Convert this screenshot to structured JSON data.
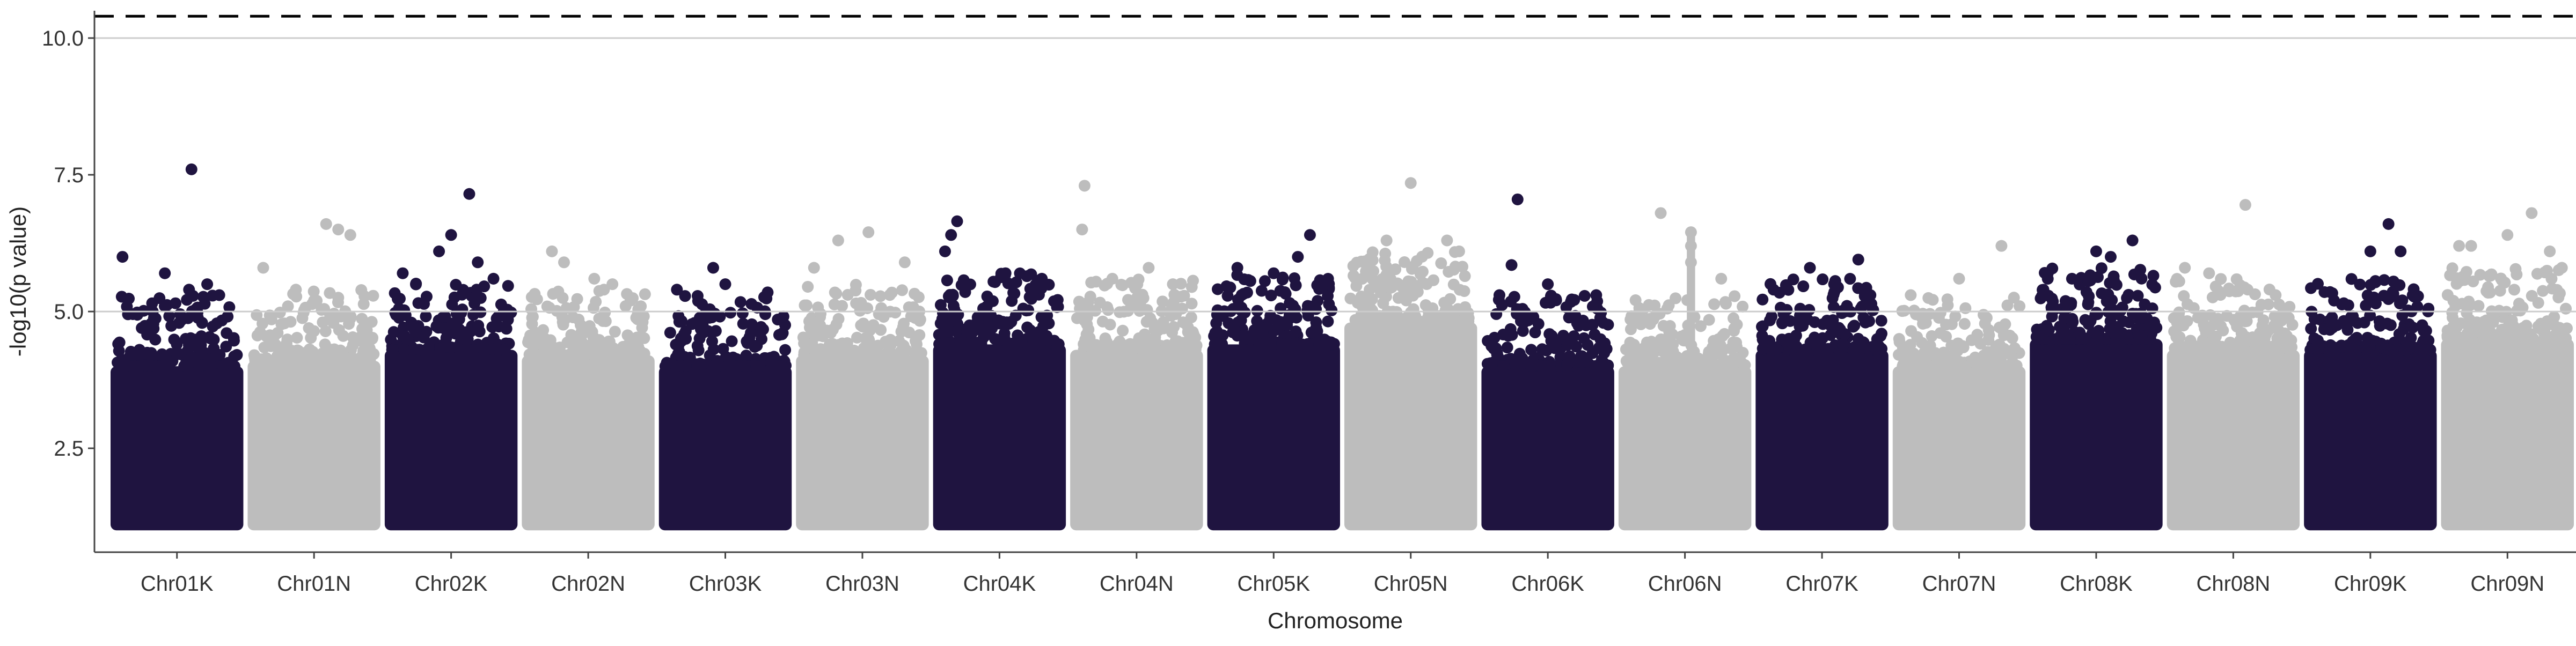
{
  "chart_data": {
    "type": "scatter",
    "subtype": "manhattan",
    "title": "",
    "xlabel": "Chromosome",
    "ylabel": "-log10(p value)",
    "ylim": [
      0.6,
      10.5
    ],
    "yticks": [
      2.5,
      5.0,
      7.5,
      10.0
    ],
    "ytick_labels": [
      "2.5",
      "5.0",
      "7.5",
      "10.0"
    ],
    "reference_lines": [
      {
        "y": 5.0,
        "style": "solid",
        "color": "#cccccc"
      },
      {
        "y": 10.0,
        "style": "solid",
        "color": "#cccccc"
      },
      {
        "y": 10.4,
        "style": "dashed",
        "color": "#000000"
      }
    ],
    "colors": {
      "dark": "#1f1440",
      "light": "#bdbdbd",
      "axis": "#444444",
      "text": "#333333"
    },
    "point_floor": 1.0,
    "categories": [
      "Chr01K",
      "Chr01N",
      "Chr02K",
      "Chr02N",
      "Chr03K",
      "Chr03N",
      "Chr04K",
      "Chr04N",
      "Chr05K",
      "Chr05N",
      "Chr06K",
      "Chr06N",
      "Chr07K",
      "Chr07N",
      "Chr08K",
      "Chr08N",
      "Chr09K",
      "Chr09N"
    ],
    "series": [
      {
        "name": "Chr01K",
        "color": "dark",
        "dense_top": 4.0,
        "top_hits": [
          [
            0.05,
            6.0
          ],
          [
            0.4,
            5.7
          ],
          [
            0.6,
            5.4
          ],
          [
            0.62,
            7.6
          ],
          [
            0.75,
            5.5
          ],
          [
            0.85,
            5.3
          ],
          [
            0.3,
            5.0
          ]
        ]
      },
      {
        "name": "Chr01N",
        "color": "light",
        "dense_top": 4.1,
        "top_hits": [
          [
            0.08,
            5.8
          ],
          [
            0.35,
            5.4
          ],
          [
            0.6,
            6.6
          ],
          [
            0.7,
            6.5
          ],
          [
            0.8,
            6.4
          ],
          [
            0.5,
            5.2
          ]
        ]
      },
      {
        "name": "Chr02K",
        "color": "dark",
        "dense_top": 4.3,
        "top_hits": [
          [
            0.1,
            5.7
          ],
          [
            0.4,
            6.1
          ],
          [
            0.5,
            6.4
          ],
          [
            0.65,
            7.15
          ],
          [
            0.72,
            5.9
          ],
          [
            0.85,
            5.6
          ]
        ]
      },
      {
        "name": "Chr02N",
        "color": "light",
        "dense_top": 4.2,
        "top_hits": [
          [
            0.2,
            6.1
          ],
          [
            0.3,
            5.9
          ],
          [
            0.55,
            5.6
          ],
          [
            0.7,
            5.5
          ],
          [
            0.85,
            5.2
          ]
        ]
      },
      {
        "name": "Chr03K",
        "color": "dark",
        "dense_top": 4.0,
        "top_hits": [
          [
            0.1,
            5.4
          ],
          [
            0.4,
            5.8
          ],
          [
            0.5,
            5.5
          ],
          [
            0.85,
            5.35
          ]
        ]
      },
      {
        "name": "Chr03N",
        "color": "light",
        "dense_top": 4.2,
        "top_hits": [
          [
            0.1,
            5.8
          ],
          [
            0.3,
            6.3
          ],
          [
            0.55,
            6.45
          ],
          [
            0.85,
            5.9
          ]
        ]
      },
      {
        "name": "Chr04K",
        "color": "dark",
        "dense_top": 4.4,
        "top_hits": [
          [
            0.05,
            6.1
          ],
          [
            0.1,
            6.4
          ],
          [
            0.15,
            6.65
          ],
          [
            0.55,
            5.7
          ],
          [
            0.85,
            5.6
          ]
        ]
      },
      {
        "name": "Chr04N",
        "color": "light",
        "dense_top": 4.3,
        "top_hits": [
          [
            0.05,
            6.5
          ],
          [
            0.07,
            7.3
          ],
          [
            0.3,
            5.6
          ],
          [
            0.6,
            5.8
          ],
          [
            0.8,
            5.5
          ]
        ]
      },
      {
        "name": "Chr05K",
        "color": "dark",
        "dense_top": 4.4,
        "top_hits": [
          [
            0.2,
            5.8
          ],
          [
            0.5,
            5.7
          ],
          [
            0.7,
            6.0
          ],
          [
            0.8,
            6.4
          ],
          [
            0.9,
            5.5
          ]
        ]
      },
      {
        "name": "Chr05N",
        "color": "light",
        "dense_top": 4.8,
        "top_hits": [
          [
            0.1,
            5.6
          ],
          [
            0.3,
            6.3
          ],
          [
            0.5,
            7.35
          ],
          [
            0.8,
            6.3
          ],
          [
            0.9,
            6.1
          ]
        ]
      },
      {
        "name": "Chr06K",
        "color": "dark",
        "dense_top": 4.0,
        "top_hits": [
          [
            0.1,
            5.3
          ],
          [
            0.2,
            5.85
          ],
          [
            0.25,
            7.05
          ],
          [
            0.5,
            5.5
          ],
          [
            0.9,
            5.3
          ]
        ]
      },
      {
        "name": "Chr06N",
        "color": "light",
        "dense_top": 4.0,
        "top_hits": [
          [
            0.3,
            6.8
          ],
          [
            0.55,
            6.45
          ],
          [
            0.55,
            6.2
          ],
          [
            0.55,
            5.9
          ],
          [
            0.8,
            5.6
          ]
        ]
      },
      {
        "name": "Chr07K",
        "color": "dark",
        "dense_top": 4.3,
        "top_hits": [
          [
            0.1,
            5.4
          ],
          [
            0.4,
            5.8
          ],
          [
            0.6,
            5.5
          ],
          [
            0.8,
            5.95
          ],
          [
            0.9,
            5.3
          ]
        ]
      },
      {
        "name": "Chr07N",
        "color": "light",
        "dense_top": 4.0,
        "top_hits": [
          [
            0.1,
            5.3
          ],
          [
            0.5,
            5.6
          ],
          [
            0.85,
            6.2
          ]
        ]
      },
      {
        "name": "Chr08K",
        "color": "dark",
        "dense_top": 4.5,
        "top_hits": [
          [
            0.1,
            5.7
          ],
          [
            0.3,
            5.6
          ],
          [
            0.5,
            6.1
          ],
          [
            0.62,
            6.0
          ],
          [
            0.8,
            6.3
          ]
        ]
      },
      {
        "name": "Chr08N",
        "color": "light",
        "dense_top": 4.3,
        "top_hits": [
          [
            0.1,
            5.8
          ],
          [
            0.3,
            5.7
          ],
          [
            0.6,
            6.95
          ],
          [
            0.85,
            5.3
          ]
        ]
      },
      {
        "name": "Chr09K",
        "color": "dark",
        "dense_top": 4.3,
        "top_hits": [
          [
            0.2,
            5.2
          ],
          [
            0.5,
            6.1
          ],
          [
            0.65,
            6.6
          ],
          [
            0.75,
            6.1
          ],
          [
            0.85,
            5.3
          ]
        ]
      },
      {
        "name": "Chr09N",
        "color": "light",
        "dense_top": 4.5,
        "top_hits": [
          [
            0.1,
            6.2
          ],
          [
            0.2,
            6.2
          ],
          [
            0.5,
            6.4
          ],
          [
            0.7,
            6.8
          ],
          [
            0.85,
            6.1
          ],
          [
            0.95,
            5.8
          ]
        ]
      }
    ]
  }
}
